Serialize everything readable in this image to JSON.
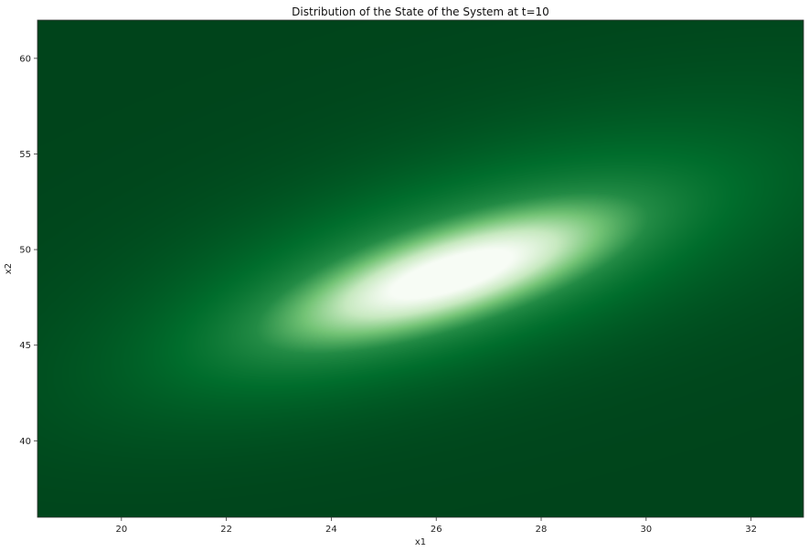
{
  "chart_data": {
    "type": "heatmap",
    "title": "Distribution of the State of the System at t=10",
    "xlabel": "x1",
    "ylabel": "x2",
    "xlim": [
      18.4,
      33.0
    ],
    "ylim": [
      36.0,
      62.0
    ],
    "xticks": [
      20,
      22,
      24,
      26,
      28,
      30,
      32
    ],
    "yticks": [
      40,
      45,
      50,
      55,
      60
    ],
    "colormap": "white-to-dark-green",
    "colors": {
      "low": "#00441b",
      "mid_low": "#006d2c",
      "mid": "#238b45",
      "mid_high": "#74c476",
      "high_mid": "#c7e9c0",
      "high": "#f7fcf5"
    },
    "distribution": {
      "kind": "bivariate-gaussian-mixture",
      "components": [
        {
          "mean": [
            26.3,
            48.7
          ],
          "sx": 1.9,
          "sy": 2.1,
          "rho": 0.72,
          "weight": 1.0
        },
        {
          "mean": [
            26.0,
            48.5
          ],
          "sx": 3.2,
          "sy": 3.8,
          "rho": 0.65,
          "weight": 0.35
        },
        {
          "mean": [
            27.5,
            50.5
          ],
          "sx": 4.5,
          "sy": 5.0,
          "rho": 0.55,
          "weight": 0.12
        }
      ]
    }
  }
}
